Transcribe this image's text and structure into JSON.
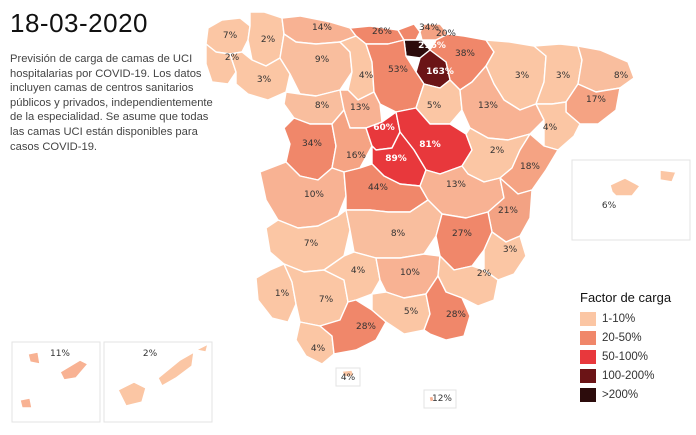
{
  "title": "18-03-2020",
  "description": "Previsión de carga de camas de UCI hospitalarias por COVID-19. Los datos incluyen camas de centros sanitarios públicos y privados, independientemente de la especialidad. Se asume que todas las camas UCI están disponibles para casos COVID-19.",
  "legend": {
    "title": "Factor de carga",
    "items": [
      {
        "label": "1-10%",
        "color": "#fbc6a4"
      },
      {
        "label": "20-50%",
        "color": "#f0876a"
      },
      {
        "label": "50-100%",
        "color": "#e8383c"
      },
      {
        "label": "100-200%",
        "color": "#6b1416"
      },
      {
        "label": ">200%",
        "color": "#2c0c0c"
      }
    ]
  },
  "provinces": [
    {
      "id": "a-coruna",
      "label": "7%",
      "color": "#fbc6a4"
    },
    {
      "id": "lugo",
      "label": "2%",
      "color": "#fbc6a4"
    },
    {
      "id": "asturias",
      "label": "14%",
      "color": "#f8b293"
    },
    {
      "id": "cantabria",
      "label": "26%",
      "color": "#f0876a"
    },
    {
      "id": "bizkaia",
      "label": "34%",
      "color": "#f0876a"
    },
    {
      "id": "gipuzkoa",
      "label": "20%",
      "color": "#f3a283"
    },
    {
      "id": "alava",
      "label": "216%",
      "color": "#2c0c0c"
    },
    {
      "id": "navarra",
      "label": "38%",
      "color": "#f0876a"
    },
    {
      "id": "la-rioja",
      "label": "163%",
      "color": "#6b1416"
    },
    {
      "id": "pontevedra",
      "label": "2%",
      "color": "#fbc6a4"
    },
    {
      "id": "ourense",
      "label": "3%",
      "color": "#fbc6a4"
    },
    {
      "id": "leon",
      "label": "9%",
      "color": "#f9be9e"
    },
    {
      "id": "palencia",
      "label": "4%",
      "color": "#fbc6a4"
    },
    {
      "id": "burgos",
      "label": "53%",
      "color": "#f0876a"
    },
    {
      "id": "huesca",
      "label": "3%",
      "color": "#fbc6a4"
    },
    {
      "id": "lleida",
      "label": "3%",
      "color": "#fbc6a4"
    },
    {
      "id": "girona",
      "label": "8%",
      "color": "#f9be9e"
    },
    {
      "id": "barcelona",
      "label": "17%",
      "color": "#f5a383"
    },
    {
      "id": "zamora",
      "label": "8%",
      "color": "#f9be9e"
    },
    {
      "id": "valladolid",
      "label": "13%",
      "color": "#f8b293"
    },
    {
      "id": "soria",
      "label": "5%",
      "color": "#fbc6a4"
    },
    {
      "id": "zaragoza",
      "label": "13%",
      "color": "#f8b293"
    },
    {
      "id": "tarragona",
      "label": "4%",
      "color": "#fbc6a4"
    },
    {
      "id": "salamanca",
      "label": "34%",
      "color": "#f0876a"
    },
    {
      "id": "avila",
      "label": "16%",
      "color": "#f5a383"
    },
    {
      "id": "segovia",
      "label": "60%",
      "color": "#e8383c"
    },
    {
      "id": "guadalajara",
      "label": "81%",
      "color": "#e8383c"
    },
    {
      "id": "madrid",
      "label": "89%",
      "color": "#e8383c"
    },
    {
      "id": "teruel",
      "label": "2%",
      "color": "#fbc6a4"
    },
    {
      "id": "castellon",
      "label": "18%",
      "color": "#f5a383"
    },
    {
      "id": "caceres",
      "label": "10%",
      "color": "#f8b293"
    },
    {
      "id": "toledo",
      "label": "44%",
      "color": "#f0876a"
    },
    {
      "id": "cuenca",
      "label": "13%",
      "color": "#f8b293"
    },
    {
      "id": "valencia",
      "label": "21%",
      "color": "#f3a283"
    },
    {
      "id": "badajoz",
      "label": "7%",
      "color": "#fbc6a4"
    },
    {
      "id": "ciudad-real",
      "label": "8%",
      "color": "#f9be9e"
    },
    {
      "id": "albacete",
      "label": "27%",
      "color": "#f0876a"
    },
    {
      "id": "alicante",
      "label": "3%",
      "color": "#fbc6a4"
    },
    {
      "id": "huelva",
      "label": "1%",
      "color": "#fbc6a4"
    },
    {
      "id": "sevilla",
      "label": "7%",
      "color": "#fbc6a4"
    },
    {
      "id": "cordoba",
      "label": "4%",
      "color": "#fbc6a4"
    },
    {
      "id": "jaen",
      "label": "10%",
      "color": "#f8b293"
    },
    {
      "id": "murcia",
      "label": "2%",
      "color": "#fbc6a4"
    },
    {
      "id": "cadiz",
      "label": "4%",
      "color": "#fbc6a4"
    },
    {
      "id": "malaga",
      "label": "28%",
      "color": "#f0876a"
    },
    {
      "id": "granada",
      "label": "5%",
      "color": "#fbc6a4"
    },
    {
      "id": "almeria",
      "label": "28%",
      "color": "#f0876a"
    },
    {
      "id": "ceuta",
      "label": "4%",
      "color": "#fbc6a4"
    },
    {
      "id": "melilla",
      "label": "12%",
      "color": "#f8b293"
    },
    {
      "id": "baleares",
      "label": "6%",
      "color": "#fbc6a4"
    },
    {
      "id": "santa-cruz-tenerife",
      "label": "11%",
      "color": "#f8b293"
    },
    {
      "id": "las-palmas",
      "label": "2%",
      "color": "#fbc6a4"
    }
  ]
}
